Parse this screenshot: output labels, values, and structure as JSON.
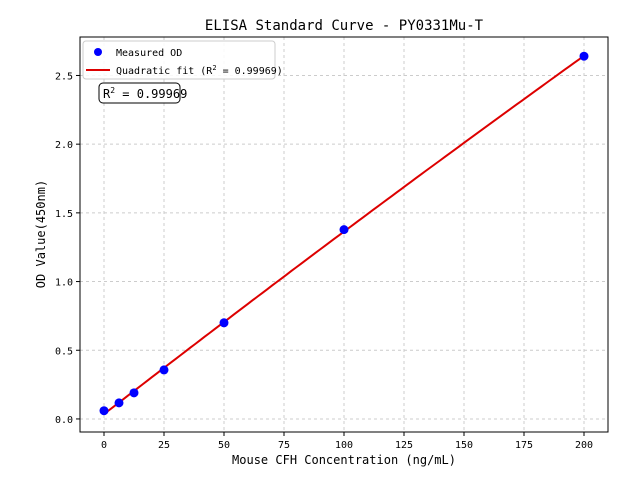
{
  "chart_data": {
    "type": "scatter",
    "title": "ELISA Standard Curve - PY0331Mu-T",
    "xlabel": "Mouse CFH Concentration (ng/mL)",
    "ylabel": "OD Value(450nm)",
    "xlim": [
      -10,
      210
    ],
    "ylim": [
      -0.095,
      2.78
    ],
    "xticks": [
      0,
      25,
      50,
      75,
      100,
      125,
      150,
      175,
      200
    ],
    "yticks": [
      0.0,
      0.5,
      1.0,
      1.5,
      2.0,
      2.5
    ],
    "ytick_labels": [
      "0.0",
      "0.5",
      "1.0",
      "1.5",
      "2.0",
      "2.5"
    ],
    "grid": true,
    "legend_placement": "top-left",
    "series": [
      {
        "name": "Measured OD",
        "kind": "scatter",
        "color": "#0000ff",
        "x": [
          0,
          6.25,
          12.5,
          25,
          50,
          100,
          200
        ],
        "y": [
          0.06,
          0.117,
          0.19,
          0.357,
          0.7,
          1.378,
          2.64
        ]
      },
      {
        "name": "Quadratic fit (R² = 0.99969)",
        "kind": "line",
        "color": "#dd0000"
      }
    ],
    "legend": {
      "measured_prefix": "Measured OD",
      "fit_prefix": "Quadratic fit (R",
      "fit_suffix": " = 0.99969)"
    },
    "annotation": {
      "prefix": "R",
      "suffix": " = 0.99969"
    }
  }
}
